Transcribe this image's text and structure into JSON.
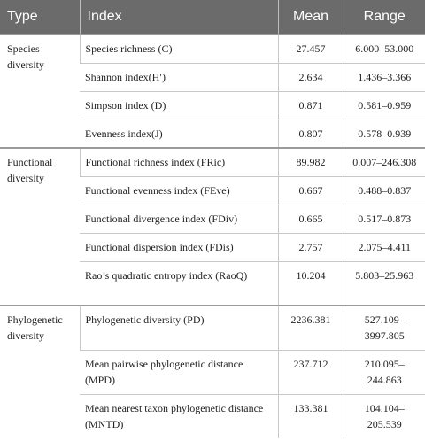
{
  "table": {
    "headers": {
      "type": "Type",
      "index": "Index",
      "mean": "Mean",
      "range": "Range"
    },
    "groups": [
      {
        "type": "Species diversity",
        "rows": [
          {
            "index": "Species richness (C)",
            "mean": "27.457",
            "range": "6.000–53.000"
          },
          {
            "index": "Shannon index(H′)",
            "mean": "2.634",
            "range": "1.436–3.366"
          },
          {
            "index": "Simpson index (D)",
            "mean": "0.871",
            "range": "0.581–0.959"
          },
          {
            "index": "Evenness index(J)",
            "mean": "0.807",
            "range": "0.578–0.939"
          }
        ]
      },
      {
        "type": "Functional diversity",
        "rows": [
          {
            "index": "Functional richness index (FRic)",
            "mean": "89.982",
            "range": "0.007–246.308"
          },
          {
            "index": "Functional evenness index (FEve)",
            "mean": "0.667",
            "range": "0.488–0.837"
          },
          {
            "index": "Functional divergence index (FDiv)",
            "mean": "0.665",
            "range": "0.517–0.873"
          },
          {
            "index": "Functional dispersion index (FDis)",
            "mean": "2.757",
            "range": "2.075–4.411"
          },
          {
            "index": "Rao’s quadratic entropy index (RaoQ)",
            "mean": "10.204",
            "range": "5.803–25.963"
          }
        ]
      },
      {
        "type": "Phylogenetic diversity",
        "rows": [
          {
            "index": "Phylogenetic diversity (PD)",
            "mean": "2236.381",
            "range": "527.109–3997.805"
          },
          {
            "index": "Mean pairwise phylogenetic distance (MPD)",
            "mean": "237.712",
            "range": "210.095–244.863"
          },
          {
            "index": "Mean nearest taxon phylogenetic distance (MNTD)",
            "mean": "133.381",
            "range": "104.104–205.539"
          }
        ]
      }
    ]
  }
}
